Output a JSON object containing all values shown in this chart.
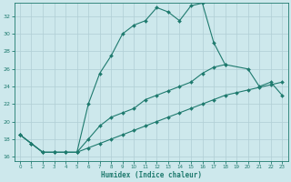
{
  "xlabel": "Humidex (Indice chaleur)",
  "xlim": [
    -0.5,
    23.5
  ],
  "ylim": [
    15.5,
    33.5
  ],
  "xticks": [
    0,
    1,
    2,
    3,
    4,
    5,
    6,
    7,
    8,
    9,
    10,
    11,
    12,
    13,
    14,
    15,
    16,
    17,
    18,
    19,
    20,
    21,
    22,
    23
  ],
  "yticks": [
    16,
    18,
    20,
    22,
    24,
    26,
    28,
    30,
    32
  ],
  "bg_color": "#cde8ec",
  "grid_color": "#b0ced4",
  "line_color": "#1e7a6e",
  "line1_x": [
    0,
    1,
    2,
    3,
    4,
    5,
    6,
    7,
    8,
    9,
    10,
    11,
    12,
    13,
    14,
    15,
    16,
    17,
    18
  ],
  "line1_y": [
    18.5,
    17.5,
    16.5,
    16.5,
    16.5,
    16.5,
    22.0,
    25.5,
    27.5,
    30.0,
    31.0,
    31.5,
    33.0,
    32.5,
    31.5,
    33.2,
    33.5,
    29.0,
    26.5
  ],
  "line2_x": [
    0,
    1,
    2,
    3,
    4,
    5,
    6,
    7,
    8,
    9,
    10,
    11,
    12,
    13,
    14,
    15,
    16,
    17,
    18,
    20,
    21,
    22,
    23
  ],
  "line2_y": [
    18.5,
    17.5,
    16.5,
    16.5,
    16.5,
    16.5,
    18.0,
    19.5,
    20.5,
    21.0,
    21.5,
    22.5,
    23.0,
    23.5,
    24.0,
    24.5,
    25.5,
    26.2,
    26.5,
    26.0,
    24.0,
    24.5,
    23.0
  ],
  "line3_x": [
    0,
    1,
    2,
    3,
    4,
    5,
    6,
    7,
    8,
    9,
    10,
    11,
    12,
    13,
    14,
    15,
    16,
    17,
    18,
    19,
    20,
    21,
    22,
    23
  ],
  "line3_y": [
    18.5,
    17.5,
    16.5,
    16.5,
    16.5,
    16.5,
    17.0,
    17.5,
    18.0,
    18.5,
    19.0,
    19.5,
    20.0,
    20.5,
    21.0,
    21.5,
    22.0,
    22.5,
    23.0,
    23.3,
    23.6,
    23.9,
    24.2,
    24.5
  ]
}
